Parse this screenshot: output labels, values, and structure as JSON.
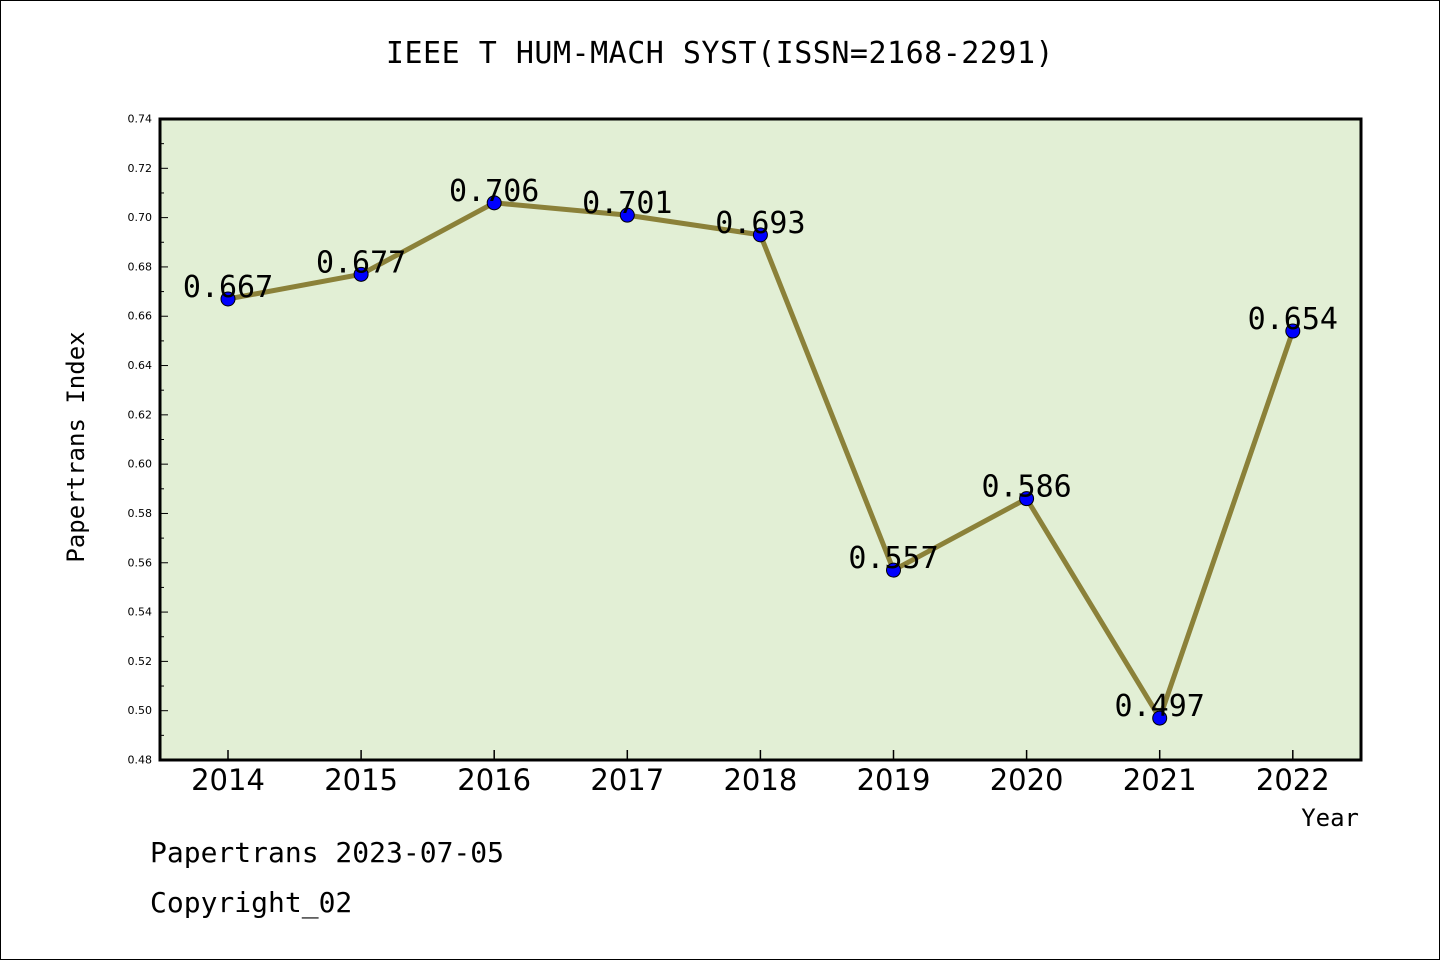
{
  "chart_data": {
    "type": "line",
    "title": "IEEE T HUM-MACH SYST(ISSN=2168-2291)",
    "xlabel": "Year",
    "ylabel": "Papertrans Index",
    "categories": [
      "2014",
      "2015",
      "2016",
      "2017",
      "2018",
      "2019",
      "2020",
      "2021",
      "2022"
    ],
    "values": [
      0.667,
      0.677,
      0.706,
      0.701,
      0.693,
      0.557,
      0.586,
      0.497,
      0.654
    ],
    "data_labels": [
      "0.667",
      "0.677",
      "0.706",
      "0.701",
      "0.693",
      "0.557",
      "0.586",
      "0.497",
      "0.654"
    ],
    "ylim": [
      0.48,
      0.74
    ],
    "yticks": [
      "0.48",
      "0.50",
      "0.52",
      "0.54",
      "0.56",
      "0.58",
      "0.60",
      "0.62",
      "0.64",
      "0.66",
      "0.68",
      "0.70",
      "0.72",
      "0.74"
    ],
    "grid": false,
    "colors": {
      "plot_background": "#e2efd5",
      "line": "#8b8139",
      "marker": "#0000ff"
    }
  },
  "footer": {
    "line1": "Papertrans 2023-07-05",
    "line2": "Copyright_02"
  }
}
